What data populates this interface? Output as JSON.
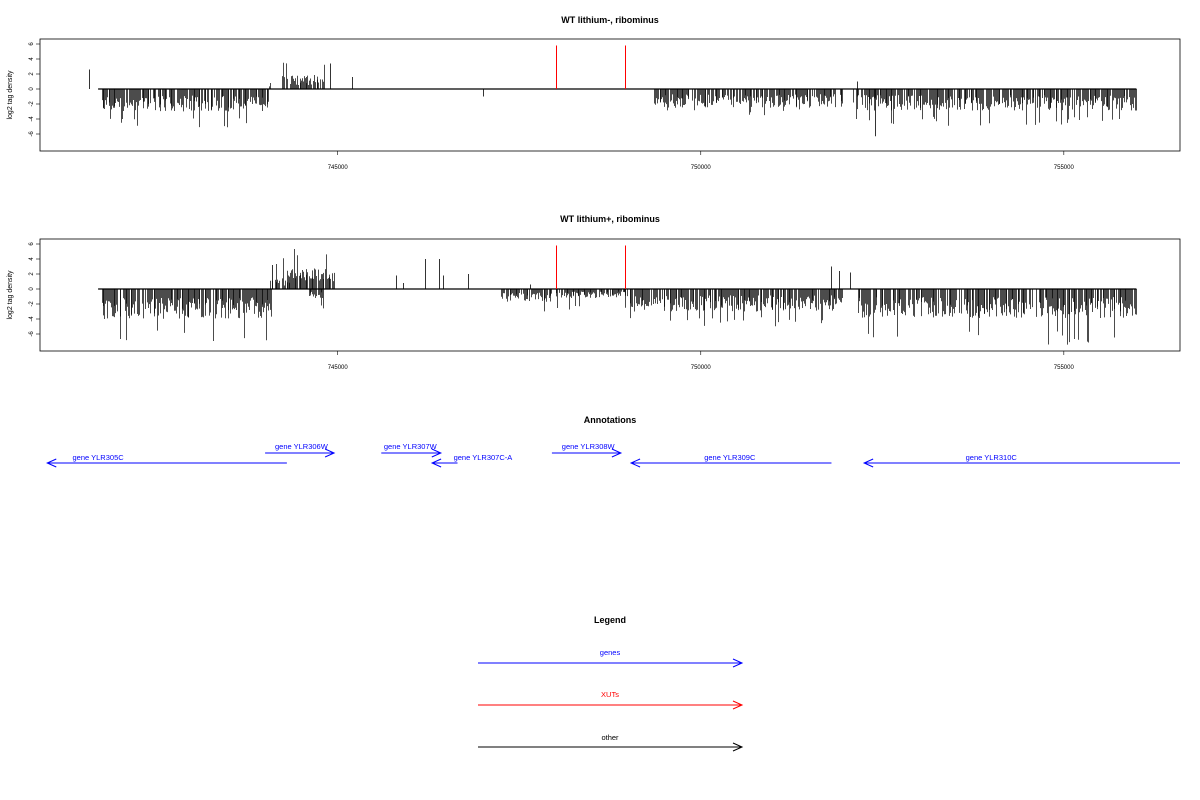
{
  "colors": {
    "gene": "#0000ff",
    "xut": "#ff0000",
    "other": "#000000",
    "axis": "#000000",
    "bars": "#000000"
  },
  "chart_data": [
    {
      "type": "bar",
      "title": "WT lithium-, ribominus",
      "ylabel": "log2 tag density",
      "xlabel": "",
      "xlim": [
        740900,
        756600
      ],
      "ylim": [
        -8,
        6.5
      ],
      "yticks": [
        "6",
        "4",
        "2",
        "0",
        "-2",
        "-4",
        "-6"
      ],
      "ytick_values": [
        6,
        4,
        2,
        0,
        -2,
        -4,
        -6
      ],
      "xticks": [
        "745000",
        "750000",
        "755000"
      ],
      "xtick_values": [
        745000,
        750000,
        755000
      ],
      "baseline": {
        "from": 741700,
        "to": 756000
      },
      "xuts": [
        748000,
        748950
      ],
      "xut_height": 5.8,
      "gap_start": 744080,
      "profile": [
        {
          "from": 741750,
          "to": 744050,
          "sign": -1,
          "avg": 2.4,
          "max": 5.2,
          "seed": 11
        },
        {
          "from": 744050,
          "to": 744080,
          "sign": 1,
          "avg": 0.8,
          "max": 1.2,
          "seed": 12
        },
        {
          "from": 744230,
          "to": 744820,
          "sign": 1,
          "avg": 1.5,
          "max": 4.1,
          "seed": 13
        },
        {
          "from": 749350,
          "to": 751950,
          "sign": -1,
          "avg": 2.0,
          "max": 3.6,
          "seed": 14
        },
        {
          "from": 752100,
          "to": 756000,
          "sign": -1,
          "avg": 2.3,
          "max": 4.9,
          "seed": 15
        }
      ],
      "spikes": [
        {
          "x": 741570,
          "y": 2.6
        },
        {
          "x": 744900,
          "y": 3.4
        },
        {
          "x": 745200,
          "y": 1.6
        },
        {
          "x": 747000,
          "y": -1.0
        },
        {
          "x": 752150,
          "y": 1.0
        },
        {
          "x": 752400,
          "y": -6.3
        }
      ]
    },
    {
      "type": "bar",
      "title": "WT lithium+, ribominus",
      "ylabel": "log2 tag density",
      "xlabel": "",
      "xlim": [
        740900,
        756600
      ],
      "ylim": [
        -8,
        6.5
      ],
      "yticks": [
        "6",
        "4",
        "2",
        "0",
        "-2",
        "-4",
        "-6"
      ],
      "ytick_values": [
        6,
        4,
        2,
        0,
        -2,
        -4,
        -6
      ],
      "xticks": [
        "745000",
        "750000",
        "755000"
      ],
      "xtick_values": [
        745000,
        750000,
        755000
      ],
      "baseline": {
        "from": 741700,
        "to": 756000
      },
      "xuts": [
        748000,
        748950
      ],
      "xut_height": 5.8,
      "gap_start": 744100,
      "profile": [
        {
          "from": 741750,
          "to": 744080,
          "sign": -1,
          "avg": 3.2,
          "max": 7.2,
          "seed": 21
        },
        {
          "from": 744050,
          "to": 744300,
          "sign": 1,
          "avg": 1.2,
          "max": 4.2,
          "seed": 22
        },
        {
          "from": 744300,
          "to": 744950,
          "sign": 1,
          "avg": 2.2,
          "max": 5.8,
          "seed": 23
        },
        {
          "from": 744600,
          "to": 744800,
          "sign": -1,
          "avg": 1.0,
          "max": 2.8,
          "seed": 24
        },
        {
          "from": 747250,
          "to": 747950,
          "sign": -1,
          "avg": 1.4,
          "max": 3.9,
          "seed": 25
        },
        {
          "from": 748000,
          "to": 748950,
          "sign": -1,
          "avg": 1.0,
          "max": 3.0,
          "seed": 26
        },
        {
          "from": 748950,
          "to": 751950,
          "sign": -1,
          "avg": 2.4,
          "max": 5.0,
          "seed": 27
        },
        {
          "from": 752150,
          "to": 756000,
          "sign": -1,
          "avg": 3.1,
          "max": 7.5,
          "seed": 28
        }
      ],
      "spikes": [
        {
          "x": 744100,
          "y": 3.2
        },
        {
          "x": 745800,
          "y": 1.8
        },
        {
          "x": 745900,
          "y": 0.8
        },
        {
          "x": 746200,
          "y": 4.0
        },
        {
          "x": 746400,
          "y": 4.0
        },
        {
          "x": 746450,
          "y": 1.8
        },
        {
          "x": 746800,
          "y": 2.0
        },
        {
          "x": 747650,
          "y": 0.6
        },
        {
          "x": 751800,
          "y": 3.0
        },
        {
          "x": 751900,
          "y": 2.4
        },
        {
          "x": 752050,
          "y": 2.2
        }
      ]
    }
  ],
  "annotations": {
    "title": "Annotations",
    "genes": [
      {
        "label": "gene YLR305C",
        "from": 741000,
        "to": 744300,
        "strand": "-",
        "row": "low",
        "label_x": 741700
      },
      {
        "label": "gene YLR306W",
        "from": 744000,
        "to": 744950,
        "strand": "+",
        "row": "high",
        "label_x": 744500
      },
      {
        "label": "gene YLR307W",
        "from": 745600,
        "to": 746420,
        "strand": "+",
        "row": "high",
        "label_x": 746000
      },
      {
        "label": "gene YLR307C-A",
        "from": 746300,
        "to": 746650,
        "strand": "-",
        "row": "mid",
        "label_x": 747000
      },
      {
        "label": "gene YLR308W",
        "from": 747950,
        "to": 748900,
        "strand": "+",
        "row": "high",
        "label_x": 748450
      },
      {
        "label": "gene YLR309C",
        "from": 749040,
        "to": 751800,
        "strand": "-",
        "row": "low",
        "label_x": 750400
      },
      {
        "label": "gene YLR310C",
        "from": 752250,
        "to": 756600,
        "strand": "-",
        "row": "low",
        "label_x": 754000
      }
    ]
  },
  "legend": {
    "title": "Legend",
    "items": [
      {
        "label": "genes",
        "color_key": "gene"
      },
      {
        "label": "XUTs",
        "color_key": "xut"
      },
      {
        "label": "other",
        "color_key": "other"
      }
    ]
  }
}
